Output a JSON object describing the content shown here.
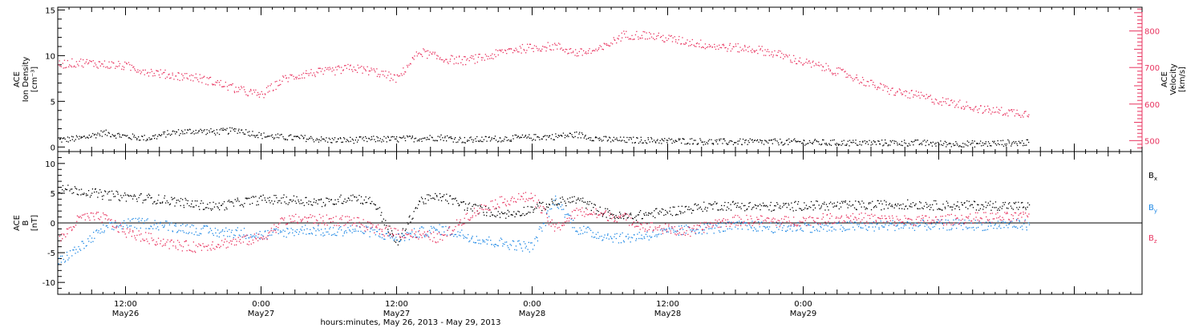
{
  "colors": {
    "axis": "#000000",
    "density": "#000000",
    "velocity": "#e8335f",
    "bx": "#000000",
    "by": "#1e88e5",
    "bz": "#e8335f"
  },
  "chart_data": [
    {
      "type": "scatter",
      "panel": "top",
      "ylabel_left": [
        "ACE",
        "Ion Density",
        "[cm⁻³]"
      ],
      "ylabel_right": [
        "ACE",
        "Velocity",
        "[km/s]"
      ],
      "ylim_left": [
        -0.5,
        15.3
      ],
      "ylim_right": [
        470,
        865
      ],
      "yticks_left": [
        0,
        5,
        10,
        15
      ],
      "yticks_right": [
        500,
        600,
        700,
        800
      ],
      "x_range_hours": [
        0,
        96
      ],
      "series": [
        {
          "key": "density",
          "color": "#000000",
          "x": [
            0,
            2,
            4,
            6,
            8,
            10,
            12,
            14,
            16,
            18,
            20,
            22,
            24,
            26,
            28,
            30,
            32,
            34,
            36,
            38,
            40,
            42,
            44,
            46,
            48,
            50,
            52,
            54,
            56,
            58,
            60,
            62,
            64,
            66,
            68,
            70,
            72,
            74,
            76,
            78,
            80,
            82,
            84,
            86
          ],
          "y": [
            0.8,
            1.0,
            1.6,
            1.2,
            1.0,
            1.6,
            1.8,
            1.7,
            1.9,
            1.3,
            1.1,
            1.0,
            0.8,
            0.8,
            0.9,
            0.9,
            1.0,
            1.1,
            0.8,
            0.9,
            1.0,
            1.1,
            1.2,
            1.4,
            0.9,
            0.8,
            0.8,
            0.7,
            0.7,
            0.6,
            0.6,
            0.6,
            0.6,
            0.6,
            0.5,
            0.5,
            0.5,
            0.5,
            0.5,
            0.4,
            0.4,
            0.4,
            0.5,
            0.5
          ]
        },
        {
          "key": "velocity",
          "color": "#e8335f",
          "x": [
            0,
            2,
            4,
            6,
            8,
            10,
            12,
            14,
            16,
            18,
            20,
            22,
            24,
            26,
            28,
            30,
            32,
            34,
            36,
            38,
            40,
            42,
            44,
            46,
            48,
            50,
            52,
            54,
            56,
            58,
            60,
            62,
            64,
            66,
            68,
            70,
            72,
            74,
            76,
            78,
            80,
            82,
            84,
            86
          ],
          "y": [
            710,
            715,
            710,
            705,
            690,
            680,
            675,
            660,
            640,
            625,
            670,
            685,
            690,
            700,
            690,
            670,
            745,
            725,
            720,
            730,
            750,
            755,
            760,
            740,
            750,
            790,
            790,
            780,
            770,
            760,
            755,
            750,
            735,
            715,
            700,
            680,
            655,
            635,
            625,
            610,
            600,
            585,
            580,
            575
          ]
        }
      ]
    },
    {
      "type": "scatter",
      "panel": "bottom",
      "ylabel": [
        "ACE",
        "B",
        "[nT]"
      ],
      "ylim": [
        -12,
        12
      ],
      "yticks": [
        -10,
        -5,
        0,
        5,
        10
      ],
      "zero_line": true,
      "x_range_hours": [
        0,
        96
      ],
      "xticks": [
        {
          "hour": 6,
          "label": "12:00",
          "sub": "May26"
        },
        {
          "hour": 18,
          "label": "0:00",
          "sub": "May27"
        },
        {
          "hour": 30,
          "label": "12:00",
          "sub": "May27"
        },
        {
          "hour": 42,
          "label": "0:00",
          "sub": "May28"
        },
        {
          "hour": 54,
          "label": "12:00",
          "sub": "May28"
        },
        {
          "hour": 66,
          "label": "0:00",
          "sub": "May29"
        }
      ],
      "xlabel": "hours:minutes, May 26, 2013 - May 29, 2013",
      "legend": [
        {
          "label": "B",
          "sub": "x",
          "color": "#000000"
        },
        {
          "label": "B",
          "sub": "y",
          "color": "#1e88e5"
        },
        {
          "label": "B",
          "sub": "z",
          "color": "#e8335f"
        }
      ],
      "series": [
        {
          "key": "bx",
          "color": "#000000",
          "x": [
            0,
            2,
            4,
            6,
            8,
            10,
            12,
            14,
            16,
            18,
            20,
            22,
            24,
            26,
            28,
            30,
            32,
            34,
            36,
            38,
            40,
            42,
            44,
            46,
            48,
            50,
            52,
            54,
            56,
            58,
            60,
            62,
            64,
            66,
            68,
            70,
            72,
            74,
            76,
            78,
            80,
            82,
            84,
            86
          ],
          "y": [
            5.8,
            5.5,
            4.8,
            4.5,
            4.2,
            3.8,
            3.2,
            2.8,
            3.5,
            4.0,
            4.0,
            3.8,
            3.5,
            4.5,
            3.5,
            -3.5,
            3.8,
            4.5,
            3.0,
            2.0,
            1.5,
            2.5,
            3.5,
            4.0,
            2.0,
            1.0,
            1.5,
            2.0,
            2.5,
            3.0,
            3.0,
            2.8,
            2.8,
            3.0,
            3.0,
            3.0,
            3.0,
            3.2,
            3.2,
            3.0,
            3.0,
            3.0,
            3.0,
            2.8
          ]
        },
        {
          "key": "by",
          "color": "#1e88e5",
          "x": [
            0,
            2,
            4,
            6,
            8,
            10,
            12,
            14,
            16,
            18,
            20,
            22,
            24,
            26,
            28,
            30,
            32,
            34,
            36,
            38,
            40,
            42,
            44,
            46,
            48,
            50,
            52,
            54,
            56,
            58,
            60,
            62,
            64,
            66,
            68,
            70,
            72,
            74,
            76,
            78,
            80,
            82,
            84,
            86
          ],
          "y": [
            -6.5,
            -4.0,
            -1.0,
            0.0,
            0.0,
            -0.5,
            -1.0,
            -1.5,
            -1.5,
            -2.0,
            -1.5,
            -1.0,
            -1.5,
            -1.0,
            -1.5,
            -2.5,
            -1.5,
            -1.0,
            -2.0,
            -3.0,
            -3.5,
            -4.0,
            4.0,
            -1.0,
            -2.0,
            -2.5,
            -2.0,
            -1.5,
            -1.0,
            -0.8,
            -0.5,
            -0.5,
            -0.8,
            -0.5,
            -0.8,
            -0.5,
            -0.5,
            -0.3,
            -0.3,
            -0.3,
            -0.2,
            -0.3,
            -0.2,
            -0.2
          ]
        },
        {
          "key": "bz",
          "color": "#e8335f",
          "x": [
            0,
            2,
            4,
            6,
            8,
            10,
            12,
            14,
            16,
            18,
            20,
            22,
            24,
            26,
            28,
            30,
            32,
            34,
            36,
            38,
            40,
            42,
            44,
            46,
            48,
            50,
            52,
            54,
            56,
            58,
            60,
            62,
            64,
            66,
            68,
            70,
            72,
            74,
            76,
            78,
            80,
            82,
            84,
            86
          ],
          "y": [
            -3.0,
            1.0,
            1.0,
            -1.5,
            -2.5,
            -3.5,
            -4.0,
            -3.5,
            -3.0,
            -2.5,
            0.5,
            0.8,
            0.5,
            0.5,
            -1.0,
            -1.5,
            -2.0,
            -2.5,
            1.0,
            3.0,
            4.0,
            4.5,
            -1.0,
            2.0,
            1.5,
            1.0,
            -0.5,
            -1.0,
            -1.5,
            0.0,
            0.5,
            0.5,
            0.3,
            0.5,
            0.8,
            1.0,
            0.8,
            0.5,
            0.5,
            0.5,
            0.8,
            1.0,
            1.0,
            1.0
          ]
        }
      ]
    }
  ]
}
